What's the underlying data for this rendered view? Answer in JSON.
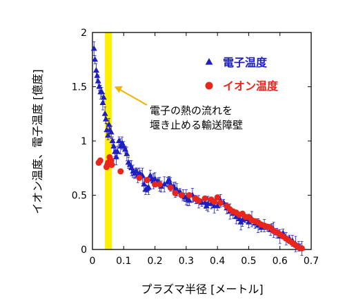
{
  "chart_data": {
    "type": "scatter",
    "xlabel": "プラズマ半径 [メートル]",
    "ylabel": "イオン温度、電子温度 [億度]",
    "xlim": [
      0,
      0.7
    ],
    "ylim": [
      0,
      2
    ],
    "xticks": [
      "0",
      "0.1",
      "0.2",
      "0.3",
      "0.4",
      "0.5",
      "0.6",
      "0.7"
    ],
    "yticks": [
      "0",
      "0.5",
      "1",
      "1.5",
      "2"
    ],
    "legend_position": "top-right",
    "series": [
      {
        "name": "電子温度",
        "marker": "triangle",
        "color": "#1f1fbf",
        "error_bars": true,
        "points": [
          [
            0.005,
            1.85
          ],
          [
            0.008,
            1.75
          ],
          [
            0.012,
            1.65
          ],
          [
            0.015,
            1.6
          ],
          [
            0.018,
            1.55
          ],
          [
            0.022,
            1.5
          ],
          [
            0.026,
            1.45
          ],
          [
            0.03,
            1.45
          ],
          [
            0.033,
            1.35
          ],
          [
            0.036,
            1.4
          ],
          [
            0.04,
            1.25
          ],
          [
            0.043,
            1.2
          ],
          [
            0.046,
            1.1
          ],
          [
            0.05,
            1.05
          ],
          [
            0.053,
            1.15
          ],
          [
            0.056,
            1.1
          ],
          [
            0.06,
            1.08
          ],
          [
            0.064,
            1.0
          ],
          [
            0.068,
            0.95
          ],
          [
            0.072,
            0.9
          ],
          [
            0.076,
            0.85
          ],
          [
            0.08,
            0.9
          ],
          [
            0.085,
            1.0
          ],
          [
            0.09,
            0.95
          ],
          [
            0.095,
            0.98
          ],
          [
            0.1,
            0.95
          ],
          [
            0.105,
            0.92
          ],
          [
            0.11,
            0.88
          ],
          [
            0.115,
            0.8
          ],
          [
            0.12,
            0.78
          ],
          [
            0.125,
            0.75
          ],
          [
            0.13,
            0.72
          ],
          [
            0.135,
            0.7
          ],
          [
            0.14,
            0.72
          ],
          [
            0.145,
            0.68
          ],
          [
            0.15,
            0.7
          ],
          [
            0.155,
            0.69
          ],
          [
            0.16,
            0.68
          ],
          [
            0.165,
            0.6
          ],
          [
            0.17,
            0.55
          ],
          [
            0.175,
            0.56
          ],
          [
            0.18,
            0.57
          ],
          [
            0.185,
            0.68
          ],
          [
            0.19,
            0.65
          ],
          [
            0.195,
            0.63
          ],
          [
            0.2,
            0.65
          ],
          [
            0.21,
            0.63
          ],
          [
            0.215,
            0.6
          ],
          [
            0.22,
            0.58
          ],
          [
            0.23,
            0.6
          ],
          [
            0.24,
            0.62
          ],
          [
            0.245,
            0.64
          ],
          [
            0.25,
            0.6
          ],
          [
            0.26,
            0.58
          ],
          [
            0.265,
            0.55
          ],
          [
            0.27,
            0.55
          ],
          [
            0.28,
            0.53
          ],
          [
            0.29,
            0.5
          ],
          [
            0.295,
            0.48
          ],
          [
            0.3,
            0.48
          ],
          [
            0.305,
            0.46
          ],
          [
            0.31,
            0.45
          ],
          [
            0.32,
            0.5
          ],
          [
            0.33,
            0.46
          ],
          [
            0.34,
            0.44
          ],
          [
            0.35,
            0.43
          ],
          [
            0.36,
            0.43
          ],
          [
            0.365,
            0.4
          ],
          [
            0.37,
            0.42
          ],
          [
            0.38,
            0.42
          ],
          [
            0.39,
            0.4
          ],
          [
            0.4,
            0.4
          ],
          [
            0.41,
            0.45
          ],
          [
            0.42,
            0.43
          ],
          [
            0.43,
            0.38
          ],
          [
            0.44,
            0.35
          ],
          [
            0.45,
            0.33
          ],
          [
            0.46,
            0.3
          ],
          [
            0.47,
            0.28
          ],
          [
            0.475,
            0.25
          ],
          [
            0.48,
            0.27
          ],
          [
            0.49,
            0.28
          ],
          [
            0.5,
            0.25
          ],
          [
            0.51,
            0.28
          ],
          [
            0.52,
            0.24
          ],
          [
            0.53,
            0.22
          ],
          [
            0.54,
            0.2
          ],
          [
            0.55,
            0.22
          ],
          [
            0.56,
            0.2
          ],
          [
            0.57,
            0.18
          ],
          [
            0.575,
            0.2
          ],
          [
            0.58,
            0.18
          ],
          [
            0.59,
            0.15
          ],
          [
            0.6,
            0.12
          ],
          [
            0.61,
            0.15
          ],
          [
            0.62,
            0.1
          ],
          [
            0.63,
            0.1
          ],
          [
            0.64,
            0.08
          ],
          [
            0.65,
            0.05
          ],
          [
            0.66,
            0.03
          ],
          [
            0.665,
            0.02
          ],
          [
            0.67,
            0.01
          ]
        ]
      },
      {
        "name": "イオン温度",
        "marker": "circle",
        "color": "#e8261c",
        "error_bars": false,
        "points": [
          [
            0.02,
            0.8
          ],
          [
            0.025,
            0.82
          ],
          [
            0.045,
            0.76
          ],
          [
            0.048,
            0.78
          ],
          [
            0.05,
            0.8
          ],
          [
            0.055,
            0.85
          ],
          [
            0.06,
            0.82
          ],
          [
            0.062,
            0.78
          ],
          [
            0.09,
            0.72
          ],
          [
            0.15,
            0.66
          ],
          [
            0.175,
            0.64
          ],
          [
            0.2,
            0.6
          ],
          [
            0.215,
            0.6
          ],
          [
            0.25,
            0.57
          ],
          [
            0.265,
            0.52
          ],
          [
            0.285,
            0.5
          ],
          [
            0.31,
            0.5
          ],
          [
            0.33,
            0.47
          ],
          [
            0.34,
            0.45
          ],
          [
            0.36,
            0.47
          ],
          [
            0.38,
            0.46
          ],
          [
            0.39,
            0.44
          ],
          [
            0.4,
            0.48
          ],
          [
            0.41,
            0.43
          ],
          [
            0.43,
            0.4
          ],
          [
            0.44,
            0.37
          ],
          [
            0.45,
            0.35
          ],
          [
            0.46,
            0.34
          ],
          [
            0.47,
            0.32
          ],
          [
            0.48,
            0.33
          ],
          [
            0.49,
            0.3
          ],
          [
            0.5,
            0.3
          ],
          [
            0.51,
            0.27
          ],
          [
            0.52,
            0.26
          ],
          [
            0.53,
            0.25
          ],
          [
            0.54,
            0.23
          ],
          [
            0.55,
            0.22
          ],
          [
            0.56,
            0.21
          ],
          [
            0.57,
            0.2
          ],
          [
            0.58,
            0.17
          ],
          [
            0.59,
            0.16
          ],
          [
            0.6,
            0.14
          ],
          [
            0.61,
            0.12
          ],
          [
            0.62,
            0.1
          ],
          [
            0.63,
            0.08
          ],
          [
            0.64,
            0.06
          ],
          [
            0.65,
            0.04
          ],
          [
            0.66,
            0.02
          ],
          [
            0.67,
            0.01
          ]
        ]
      }
    ],
    "highlight_band": {
      "x_from": 0.04,
      "x_to": 0.062,
      "color": "#ffee00"
    },
    "annotation": {
      "lines": [
        "電子の熱の流れを",
        "堰き止める輸送障壁"
      ],
      "arrow_to": [
        0.07,
        1.5
      ],
      "arrow_color": "#f2b300"
    }
  }
}
